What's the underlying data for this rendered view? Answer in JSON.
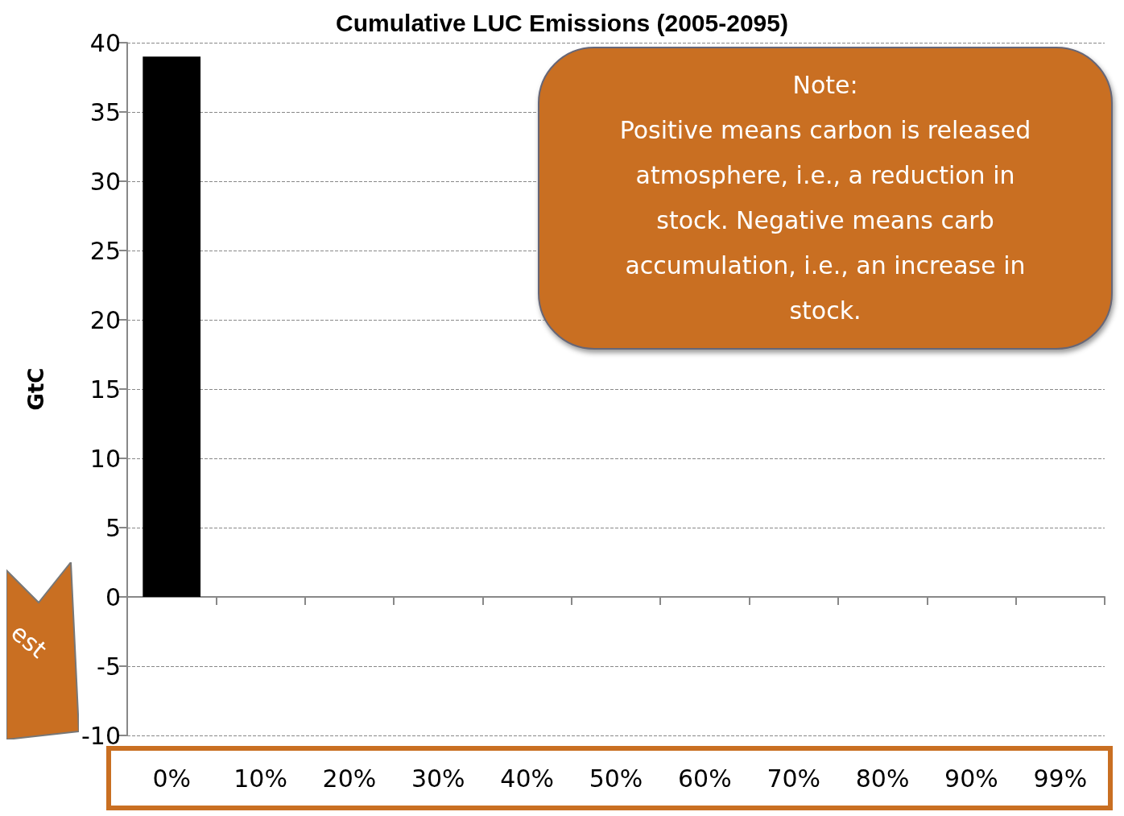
{
  "chart_data": {
    "type": "bar",
    "title": "Cumulative LUC Emissions (2005-2095)",
    "ylabel": "GtC",
    "categories": [
      "0%",
      "10%",
      "20%",
      "30%",
      "40%",
      "50%",
      "60%",
      "70%",
      "80%",
      "90%",
      "99%"
    ],
    "values": [
      39,
      null,
      null,
      null,
      null,
      null,
      null,
      null,
      null,
      null,
      null
    ],
    "color": "#000000",
    "ylim": [
      -10,
      40
    ],
    "yticks": [
      -10,
      -5,
      0,
      5,
      10,
      15,
      20,
      25,
      30,
      35,
      40
    ],
    "grid": "y",
    "annotations": [
      "Note:\nPositive means carbon is released\natmosphere, i.e., a reduction in\nstock.  Negative means carb\naccumulation, i.e., an increase in\nstock.",
      "est"
    ]
  }
}
